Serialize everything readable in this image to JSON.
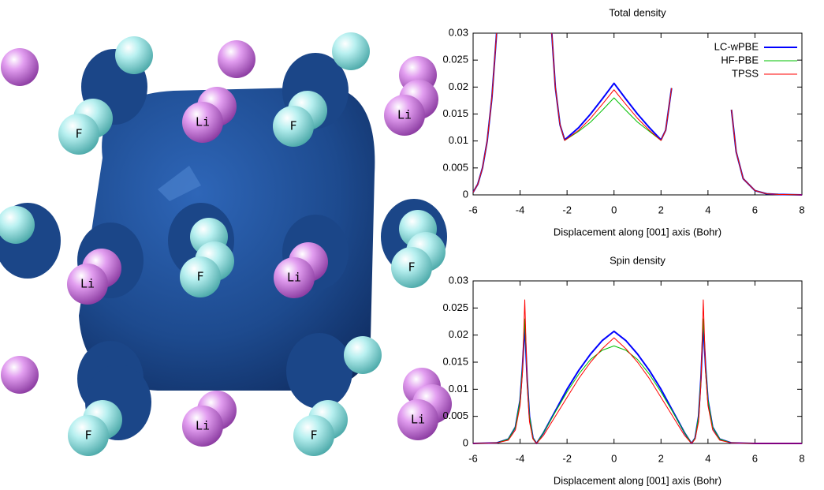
{
  "atoms": [
    "F",
    "Li",
    "F",
    "Li",
    "F",
    "Li",
    "Li",
    "F",
    "F",
    "Li",
    "F",
    "Li"
  ],
  "chart_data": [
    {
      "type": "line",
      "title": "Total density",
      "x_label": "Displacement along [001] axis (Bohr)",
      "legend": "upper right",
      "x": [
        -6,
        -5.8,
        -5.6,
        -5.4,
        -5.2,
        -5.0,
        -4,
        -2.65,
        -2.5,
        -2.3,
        -2.1,
        -1.5,
        -1,
        -0.5,
        0,
        0.5,
        1,
        1.5,
        2.0,
        2.2,
        2.45,
        3.5,
        5.0,
        5.2,
        5.5,
        6,
        6.5,
        7,
        8
      ],
      "series": [
        {
          "name": "LC-wPBE",
          "color": "#0000ff",
          "values": [
            0.0005,
            0.002,
            0.005,
            0.01,
            0.018,
            0.03,
            null,
            0.03,
            0.02,
            0.013,
            0.0102,
            0.0125,
            0.015,
            0.0178,
            0.0207,
            0.0178,
            0.015,
            0.0125,
            0.0102,
            0.012,
            0.0198,
            null,
            0.0158,
            0.008,
            0.003,
            0.0008,
            0.0002,
            0.0001,
            0
          ]
        },
        {
          "name": "HF-PBE",
          "color": "#00c000",
          "values": [
            0.0005,
            0.002,
            0.005,
            0.01,
            0.018,
            0.03,
            null,
            0.03,
            0.02,
            0.013,
            0.0101,
            0.0118,
            0.0135,
            0.0157,
            0.018,
            0.0157,
            0.0135,
            0.0118,
            0.0101,
            0.012,
            0.0198,
            null,
            0.0158,
            0.008,
            0.003,
            0.0008,
            0.0002,
            0.0001,
            0
          ]
        },
        {
          "name": "TPSS",
          "color": "#ff0000",
          "values": [
            0.0005,
            0.002,
            0.005,
            0.01,
            0.018,
            0.03,
            null,
            0.03,
            0.02,
            0.013,
            0.0101,
            0.012,
            0.0142,
            0.0168,
            0.0195,
            0.0168,
            0.0142,
            0.012,
            0.0101,
            0.012,
            0.0198,
            null,
            0.0158,
            0.008,
            0.003,
            0.0008,
            0.0002,
            0.0001,
            0
          ]
        }
      ],
      "xlim": [
        -6,
        8
      ],
      "ylim": [
        0,
        0.03
      ],
      "xticks": [
        -6,
        -4,
        -2,
        0,
        2,
        4,
        6,
        8
      ],
      "yticks": [
        0,
        0.005,
        0.01,
        0.015,
        0.02,
        0.025,
        0.03
      ]
    },
    {
      "type": "line",
      "title": "Spin density",
      "x_label": "Displacement along [001] axis (Bohr)",
      "x": [
        -6,
        -5,
        -4.5,
        -4.2,
        -4.0,
        -3.9,
        -3.8,
        -3.7,
        -3.6,
        -3.45,
        -3.3,
        -3,
        -2.5,
        -2,
        -1.5,
        -1,
        -0.5,
        0,
        0.5,
        1,
        1.5,
        2,
        2.5,
        3,
        3.3,
        3.45,
        3.6,
        3.7,
        3.8,
        3.9,
        4.0,
        4.2,
        4.5,
        5,
        6,
        8
      ],
      "series": [
        {
          "name": "LC-wPBE",
          "color": "#0000ff",
          "values": [
            0,
            0.0001,
            0.0008,
            0.003,
            0.008,
            0.014,
            0.022,
            0.012,
            0.005,
            0.001,
            0,
            0.002,
            0.006,
            0.01,
            0.0135,
            0.0165,
            0.019,
            0.0207,
            0.019,
            0.0165,
            0.0135,
            0.01,
            0.006,
            0.002,
            0,
            0.001,
            0.005,
            0.012,
            0.022,
            0.014,
            0.008,
            0.003,
            0.0008,
            0.0001,
            0,
            0
          ]
        },
        {
          "name": "HF-PBE",
          "color": "#00c000",
          "values": [
            0,
            0.0001,
            0.0008,
            0.003,
            0.008,
            0.014,
            0.023,
            0.012,
            0.005,
            0.001,
            0,
            0.002,
            0.0058,
            0.0095,
            0.0128,
            0.0155,
            0.0172,
            0.018,
            0.0172,
            0.0155,
            0.0128,
            0.0095,
            0.0058,
            0.002,
            0,
            0.001,
            0.005,
            0.012,
            0.023,
            0.014,
            0.008,
            0.003,
            0.0008,
            0.0001,
            0,
            0
          ]
        },
        {
          "name": "TPSS",
          "color": "#ff0000",
          "values": [
            0,
            0.0001,
            0.0006,
            0.0025,
            0.007,
            0.013,
            0.0265,
            0.011,
            0.004,
            0.0008,
            0,
            0.0015,
            0.005,
            0.0085,
            0.012,
            0.015,
            0.0175,
            0.0195,
            0.0175,
            0.015,
            0.012,
            0.0085,
            0.005,
            0.0015,
            0,
            0.0008,
            0.004,
            0.011,
            0.0265,
            0.013,
            0.007,
            0.0025,
            0.0006,
            0.0001,
            0,
            0
          ]
        }
      ],
      "xlim": [
        -6,
        8
      ],
      "ylim": [
        0,
        0.03
      ],
      "xticks": [
        -6,
        -4,
        -2,
        0,
        2,
        4,
        6,
        8
      ],
      "yticks": [
        0,
        0.005,
        0.01,
        0.015,
        0.02,
        0.025,
        0.03
      ]
    }
  ]
}
